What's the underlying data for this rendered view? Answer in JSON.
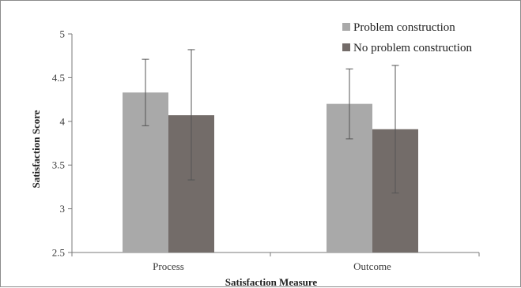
{
  "chart_data": {
    "type": "bar",
    "title": "",
    "xlabel": "Satisfaction Measure",
    "ylabel": "Satisfaction Score",
    "ylim": [
      2.5,
      5
    ],
    "yticks": [
      2.5,
      3,
      3.5,
      4,
      4.5,
      5
    ],
    "ytick_labels": [
      "2.5",
      "3",
      "3.5",
      "4",
      "4.5",
      "5"
    ],
    "categories": [
      "Process",
      "Outcome"
    ],
    "grid": false,
    "legend_position": "top-right",
    "error_bars": true,
    "series": [
      {
        "name": "Problem construction",
        "color": "#a9a9a9",
        "values": [
          4.33,
          4.2
        ],
        "error_low": [
          3.95,
          3.8
        ],
        "error_high": [
          4.71,
          4.6
        ]
      },
      {
        "name": "No problem construction",
        "color": "#736c69",
        "values": [
          4.07,
          3.91
        ],
        "error_low": [
          3.33,
          3.18
        ],
        "error_high": [
          4.82,
          4.64
        ]
      }
    ]
  }
}
